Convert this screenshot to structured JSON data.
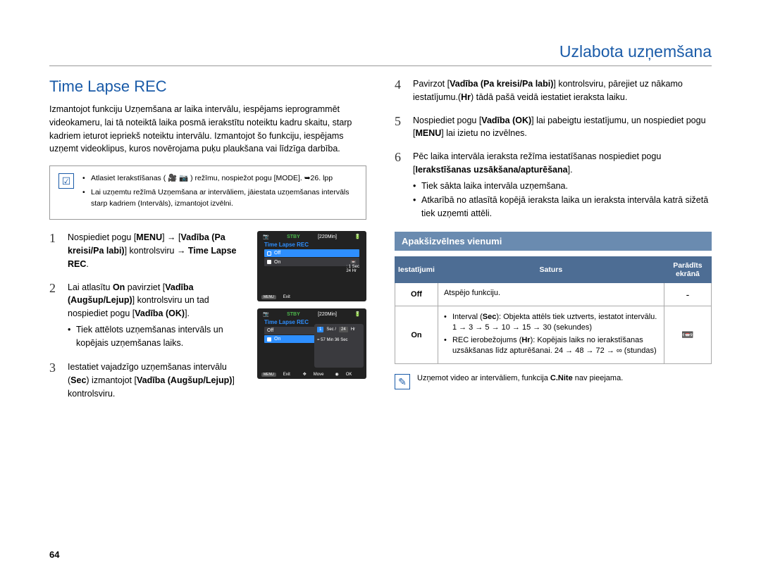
{
  "header": {
    "chapter": "Uzlabota uzņemšana"
  },
  "section": {
    "title": "Time Lapse REC",
    "intro": "Izmantojot funkciju Uzņemšana ar laika intervālu, iespējams ieprogrammēt videokameru, lai tā noteiktā laika posmā ierakstītu noteiktu kadru skaitu, starp kadriem ieturot iepriekš noteiktu intervālu. Izmantojot šo funkciju, iespējams uzņemt videoklipus, kuros novērojama puķu plaukšana vai līdzīga darbība."
  },
  "notebox": {
    "items": [
      "Atlasiet Ierakstīšanas ( 🎥 📷 ) režīmu, nospiežot pogu [MODE]. ➥26. lpp",
      "Lai uzņemtu režīmā Uzņemšana ar intervāliem, jāiestata uzņemšanas intervāls starp kadriem (Intervāls), izmantojot izvēlni."
    ]
  },
  "left_steps": [
    {
      "n": "1",
      "html": "Nospiediet pogu [<b>MENU</b>] → [<b>Vadība (Pa kreisi/Pa labi)</b>] kontrolsviru → <b>Time Lapse REC</b>."
    },
    {
      "n": "2",
      "html": "Lai atlasītu <b>On</b> pavirziet [<b>Vadība (Augšup/Lejup)</b>] kontrolsviru un tad nospiediet pogu [<b>Vadība (OK)</b>].",
      "sub": [
        "Tiek attēlots uzņemšanas intervāls un kopējais uzņemšanas laiks."
      ]
    },
    {
      "n": "3",
      "html": "Iestatiet vajadzīgo uzņemšanas intervālu (<b>Sec</b>) izmantojot [<b>Vadība (Augšup/Lejup)</b>] kontrolsviru."
    }
  ],
  "right_steps": [
    {
      "n": "4",
      "html": "Pavirzot [<b>Vadība (Pa kreisi/Pa labi)</b>] kontrolsviru, pārejiet uz nākamo iestatījumu.(<b>Hr</b>) tādā pašā veidā iestatiet ieraksta laiku."
    },
    {
      "n": "5",
      "html": "Nospiediet pogu [<b>Vadība (OK)</b>] lai pabeigtu iestatījumu, un nospiediet pogu [<b>MENU</b>] lai izietu no izvēlnes."
    },
    {
      "n": "6",
      "html": "Pēc laika intervāla ieraksta režīma iestatīšanas nospiediet pogu [<b>Ierakstīšanas uzsākšana/apturēšana</b>].",
      "sub": [
        "Tiek sākta laika intervāla uzņemšana.",
        "Atkarībā no atlasītā kopējā ieraksta laika un ieraksta intervāla katrā sižetā tiek uzņemti attēli."
      ]
    }
  ],
  "screens": {
    "stby": "STBY",
    "time": "[220Min]",
    "title": "Time Lapse REC",
    "off": "Off",
    "on": "On",
    "side_text1": ": 1 Sec",
    "side_text2": "24 Hr",
    "menu_exit": "Exit",
    "overlay": {
      "sec_label": "Sec /",
      "hr_label": "Hr",
      "sec_val": "1",
      "hr_val": "24",
      "remain": "= 57 Min 36 Sec",
      "move": "Move",
      "ok": "OK"
    }
  },
  "submenu": {
    "title": "Apakšizvēlnes vienumi",
    "headers": [
      "Iestatījumi",
      "Saturs",
      "Parādīts ekrānā"
    ],
    "rows": [
      {
        "setting": "Off",
        "content_html": "Atspējo funkciju.",
        "icon": "-"
      },
      {
        "setting": "On",
        "content_html": "<ul><li>Interval (<b>Sec</b>): Objekta attēls tiek uztverts, iestatot intervālu.<br>1 → 3 → 5 → 10 → 15 → 30 (sekundes)</li><li>REC ierobežojums (<b>Hr</b>): Kopējais laiks no ierakstīšanas uzsākšanas līdz apturēšanai. 24 → 48 → 72 → ∞ (stundas)</li></ul>",
        "icon": "📼"
      }
    ]
  },
  "footnote": "Uzņemot video ar intervāliem, funkcija C.Nite nav pieejama.",
  "page": "64"
}
